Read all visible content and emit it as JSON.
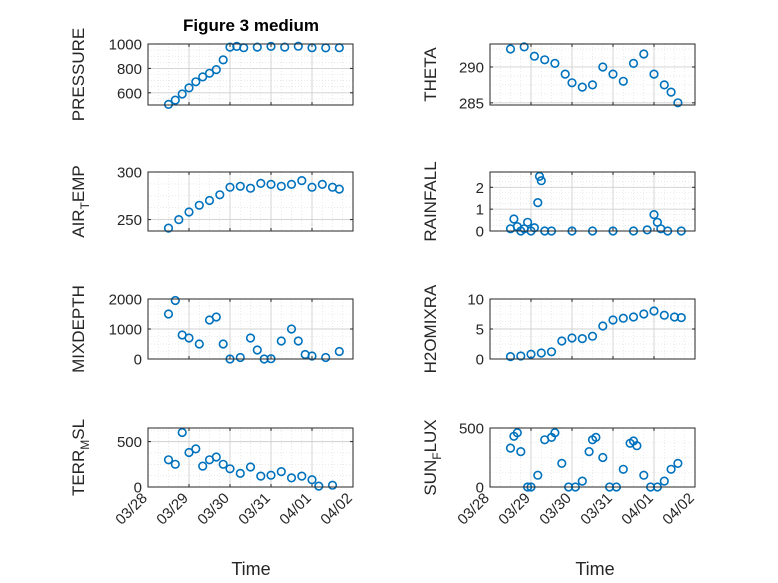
{
  "figure": {
    "title": "Figure 3 medium",
    "xlabel": "Time",
    "x_ticklabels": [
      "03/28",
      "03/29",
      "03/30",
      "03/31",
      "04/01",
      "04/02"
    ],
    "marker_color": "#0072BD",
    "grid_color": "#DCDCDC"
  },
  "chart_data": [
    {
      "type": "scatter",
      "ylabel": "PRESSURE",
      "ylim": [
        500,
        1000
      ],
      "yticks": [
        600,
        800,
        1000
      ],
      "x": [
        "03/28 12:00",
        "03/28 16:00",
        "03/28 20:00",
        "03/29 00:00",
        "03/29 04:00",
        "03/29 08:00",
        "03/29 12:00",
        "03/29 16:00",
        "03/29 20:00",
        "03/30 00:00",
        "03/30 04:00",
        "03/30 08:00",
        "03/30 16:00",
        "03/31 00:00",
        "03/31 08:00",
        "03/31 16:00",
        "04/01 00:00",
        "04/01 08:00",
        "04/01 16:00"
      ],
      "values": [
        505,
        540,
        590,
        640,
        690,
        730,
        760,
        790,
        870,
        975,
        980,
        970,
        975,
        980,
        975,
        982,
        970,
        968,
        970
      ]
    },
    {
      "type": "scatter",
      "ylabel": "THETA",
      "ylim": [
        284.7,
        293.2
      ],
      "yticks": [
        285,
        290
      ],
      "x": [
        "03/28 12:00",
        "03/28 20:00",
        "03/29 02:00",
        "03/29 08:00",
        "03/29 14:00",
        "03/29 20:00",
        "03/30 00:00",
        "03/30 06:00",
        "03/30 12:00",
        "03/30 18:00",
        "03/31 00:00",
        "03/31 06:00",
        "03/31 12:00",
        "03/31 18:00",
        "04/01 00:00",
        "04/01 06:00",
        "04/01 10:00",
        "04/01 14:00"
      ],
      "values": [
        292.5,
        292.8,
        291.5,
        291.0,
        290.5,
        289.0,
        287.8,
        287.2,
        287.5,
        290.0,
        289.0,
        288.0,
        290.5,
        291.8,
        289.0,
        287.5,
        286.5,
        285.0
      ]
    },
    {
      "type": "scatter",
      "ylabel": "AIR_TEMP",
      "ylim": [
        238,
        300
      ],
      "yticks": [
        250,
        300
      ],
      "x": [
        "03/28 12:00",
        "03/28 18:00",
        "03/29 00:00",
        "03/29 06:00",
        "03/29 12:00",
        "03/29 18:00",
        "03/30 00:00",
        "03/30 06:00",
        "03/30 12:00",
        "03/30 18:00",
        "03/31 00:00",
        "03/31 06:00",
        "03/31 12:00",
        "03/31 18:00",
        "04/01 00:00",
        "04/01 06:00",
        "04/01 12:00",
        "04/01 16:00"
      ],
      "values": [
        241,
        250,
        258,
        265,
        270,
        276,
        284,
        285,
        283,
        288,
        287,
        285,
        287,
        291,
        284,
        287,
        284,
        282
      ]
    },
    {
      "type": "scatter",
      "ylabel": "RAINFALL",
      "ylim": [
        0,
        2.7
      ],
      "yticks": [
        0,
        1,
        2
      ],
      "x": [
        "03/28 12:00",
        "03/28 14:00",
        "03/28 16:00",
        "03/28 18:00",
        "03/28 20:00",
        "03/28 22:00",
        "03/29 00:00",
        "03/29 02:00",
        "03/29 04:00",
        "03/29 05:00",
        "03/29 06:00",
        "03/29 08:00",
        "03/29 12:00",
        "03/30 00:00",
        "03/30 12:00",
        "03/31 00:00",
        "03/31 12:00",
        "03/31 20:00",
        "04/01 00:00",
        "04/01 02:00",
        "04/01 04:00",
        "04/01 08:00",
        "04/01 16:00"
      ],
      "values": [
        0.1,
        0.55,
        0.2,
        0.0,
        0.1,
        0.4,
        0.0,
        0.15,
        1.3,
        2.5,
        2.3,
        0.0,
        0.0,
        0.0,
        0.0,
        0.0,
        0.0,
        0.05,
        0.75,
        0.4,
        0.1,
        0.0,
        0.0
      ]
    },
    {
      "type": "scatter",
      "ylabel": "MIXDEPTH",
      "ylim": [
        0,
        2000
      ],
      "yticks": [
        0,
        1000,
        2000
      ],
      "x": [
        "03/28 12:00",
        "03/28 16:00",
        "03/28 20:00",
        "03/29 00:00",
        "03/29 06:00",
        "03/29 12:00",
        "03/29 16:00",
        "03/29 20:00",
        "03/30 00:00",
        "03/30 06:00",
        "03/30 12:00",
        "03/30 16:00",
        "03/30 20:00",
        "03/31 00:00",
        "03/31 06:00",
        "03/31 12:00",
        "03/31 16:00",
        "03/31 20:00",
        "04/01 00:00",
        "04/01 08:00",
        "04/01 16:00"
      ],
      "values": [
        1500,
        1950,
        800,
        700,
        500,
        1300,
        1400,
        500,
        0,
        50,
        700,
        300,
        0,
        10,
        600,
        1000,
        600,
        150,
        100,
        50,
        250
      ]
    },
    {
      "type": "scatter",
      "ylabel": "H2OMIXRA",
      "ylim": [
        0,
        10
      ],
      "yticks": [
        0,
        5,
        10
      ],
      "x": [
        "03/28 12:00",
        "03/28 18:00",
        "03/29 00:00",
        "03/29 06:00",
        "03/29 12:00",
        "03/29 18:00",
        "03/30 00:00",
        "03/30 06:00",
        "03/30 12:00",
        "03/30 18:00",
        "03/31 00:00",
        "03/31 06:00",
        "03/31 12:00",
        "03/31 18:00",
        "04/01 00:00",
        "04/01 06:00",
        "04/01 12:00",
        "04/01 16:00"
      ],
      "values": [
        0.4,
        0.5,
        0.8,
        1.0,
        1.2,
        3.0,
        3.5,
        3.4,
        3.8,
        5.5,
        6.5,
        6.8,
        7.0,
        7.5,
        8.0,
        7.3,
        7.0,
        6.9
      ]
    },
    {
      "type": "scatter",
      "ylabel": "TERR_MSL",
      "ylim": [
        0,
        650
      ],
      "yticks": [
        0,
        500
      ],
      "x": [
        "03/28 12:00",
        "03/28 16:00",
        "03/28 20:00",
        "03/29 00:00",
        "03/29 04:00",
        "03/29 08:00",
        "03/29 12:00",
        "03/29 16:00",
        "03/29 20:00",
        "03/30 00:00",
        "03/30 06:00",
        "03/30 12:00",
        "03/30 18:00",
        "03/31 00:00",
        "03/31 06:00",
        "03/31 12:00",
        "03/31 18:00",
        "04/01 00:00",
        "04/01 04:00",
        "04/01 12:00"
      ],
      "values": [
        300,
        250,
        600,
        380,
        420,
        230,
        300,
        330,
        250,
        200,
        150,
        220,
        120,
        130,
        170,
        100,
        120,
        80,
        10,
        20
      ]
    },
    {
      "type": "scatter",
      "ylabel": "SUN_FLUX",
      "ylim": [
        0,
        500
      ],
      "yticks": [
        0,
        500
      ],
      "x": [
        "03/28 12:00",
        "03/28 14:00",
        "03/28 16:00",
        "03/28 18:00",
        "03/28 22:00",
        "03/29 00:00",
        "03/29 04:00",
        "03/29 08:00",
        "03/29 12:00",
        "03/29 14:00",
        "03/29 18:00",
        "03/29 22:00",
        "03/30 02:00",
        "03/30 06:00",
        "03/30 10:00",
        "03/30 12:00",
        "03/30 14:00",
        "03/30 18:00",
        "03/30 22:00",
        "03/31 02:00",
        "03/31 06:00",
        "03/31 10:00",
        "03/31 12:00",
        "03/31 14:00",
        "03/31 18:00",
        "03/31 22:00",
        "04/01 02:00",
        "04/01 06:00",
        "04/01 10:00",
        "04/01 14:00"
      ],
      "values": [
        330,
        430,
        460,
        300,
        0,
        0,
        100,
        400,
        420,
        460,
        200,
        0,
        0,
        50,
        300,
        400,
        420,
        250,
        0,
        0,
        150,
        370,
        390,
        350,
        100,
        0,
        0,
        50,
        150,
        200
      ]
    }
  ]
}
